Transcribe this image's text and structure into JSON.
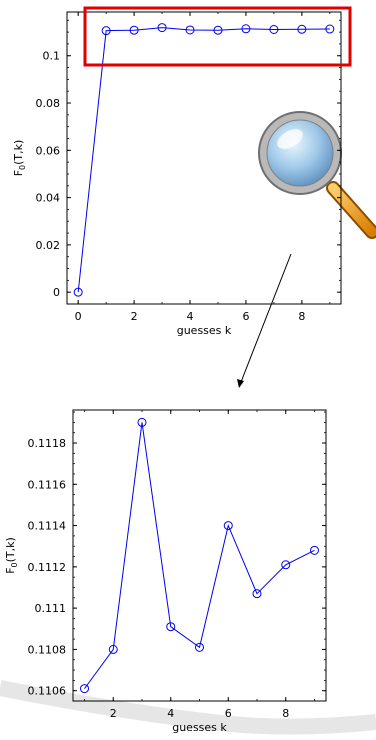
{
  "chart_data": [
    {
      "type": "line",
      "x": [
        0,
        1,
        2,
        3,
        4,
        5,
        6,
        7,
        8,
        9
      ],
      "series": [
        {
          "values": [
            0,
            0.1106,
            0.1108,
            0.1119,
            0.1109,
            0.1108,
            0.1114,
            0.1111,
            0.1112,
            0.1113
          ]
        }
      ],
      "xlabel": "guesses k",
      "ylabel_main": "F",
      "ylabel_sub": "0",
      "ylabel_tail": "(T,k)",
      "xlim": [
        -0.4,
        9.4
      ],
      "ylim": [
        -0.005,
        0.1185
      ],
      "xticks": [
        0,
        2,
        4,
        6,
        8
      ],
      "yticks": [
        0,
        0.02,
        0.04,
        0.06,
        0.08,
        0.1
      ],
      "ytick_labels": [
        "0",
        "0.02",
        "0.04",
        "0.06",
        "0.08",
        "0.1"
      ],
      "grid": false,
      "line_color": "#0000ee",
      "marker": "open-circle",
      "highlight_box_color": "#e00000"
    },
    {
      "type": "line",
      "x": [
        1,
        2,
        3,
        4,
        5,
        6,
        7,
        8,
        9
      ],
      "series": [
        {
          "values": [
            0.11061,
            0.1108,
            0.1119,
            0.11091,
            0.11081,
            0.1114,
            0.11107,
            0.11121,
            0.11128
          ]
        }
      ],
      "xlabel": "guesses k",
      "ylabel_main": "F",
      "ylabel_sub": "0",
      "ylabel_tail": "(T,k)",
      "xlim": [
        0.6,
        9.4
      ],
      "ylim": [
        0.11055,
        0.11196
      ],
      "xticks": [
        2,
        4,
        6,
        8
      ],
      "yticks": [
        0.1106,
        0.1108,
        0.111,
        0.1112,
        0.1114,
        0.1116,
        0.1118
      ],
      "ytick_labels": [
        "0.1106",
        "0.1108",
        "0.111",
        "0.1112",
        "0.1114",
        "0.1116",
        "0.1118"
      ],
      "grid": false,
      "line_color": "#0000ee",
      "marker": "open-circle"
    }
  ],
  "icons": {
    "magnifier": "magnifying-glass-icon",
    "arrow": "zoom-arrow"
  }
}
